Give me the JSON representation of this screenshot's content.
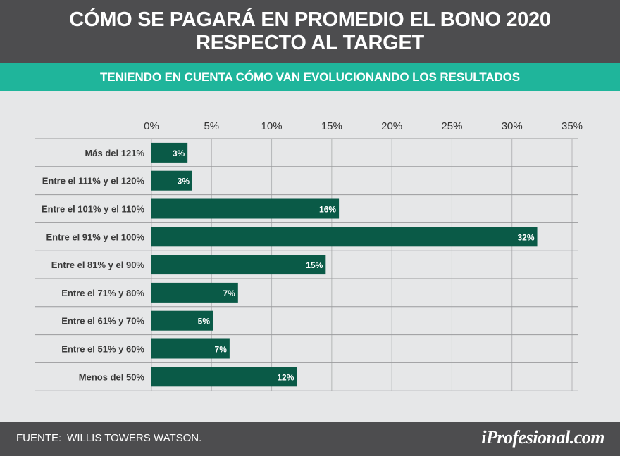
{
  "header": {
    "title_line1": "CÓMO SE PAGARÁ EN PROMEDIO EL BONO 2020",
    "title_line2": "RESPECTO AL TARGET"
  },
  "subheader": "TENIENDO EN CUENTA CÓMO VAN EVOLUCIONANDO LOS RESULTADOS",
  "footer": {
    "source_label": "FUENTE:",
    "source_value": "WILLIS TOWERS WATSON.",
    "logo": "iProfesional.com"
  },
  "colors": {
    "header_bg": "#4d4d4f",
    "subheader_bg": "#1fb59b",
    "bar": "#0a5a47",
    "background": "#e6e7e8"
  },
  "chart_data": {
    "type": "bar",
    "orientation": "horizontal",
    "categories": [
      "Más del 121%",
      "Entre el 111% y el 120%",
      "Entre el 101% y el 110%",
      "Entre el 91% y el 100%",
      "Entre el 81% y el 90%",
      "Entre el 71% y 80%",
      "Entre el 61% y 70%",
      "Entre el 51% y 60%",
      "Menos del 50%"
    ],
    "values": [
      3,
      3.4,
      15.6,
      32.1,
      14.5,
      7.2,
      5.1,
      6.5,
      12.1
    ],
    "data_labels": [
      "3%",
      "3%",
      "16%",
      "32%",
      "15%",
      "7%",
      "5%",
      "7%",
      "12%"
    ],
    "xlim": [
      0,
      35
    ],
    "xticks": [
      0,
      5,
      10,
      15,
      20,
      25,
      30,
      35
    ],
    "xtick_labels": [
      "0%",
      "5%",
      "10%",
      "15%",
      "20%",
      "25%",
      "30%",
      "35%"
    ],
    "axis_position": "top",
    "grid": true
  }
}
